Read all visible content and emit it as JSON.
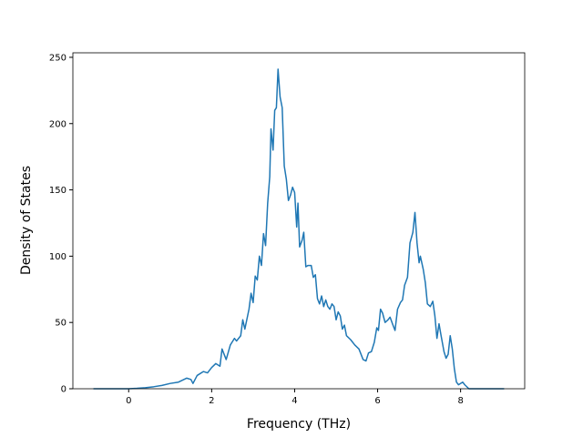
{
  "chart_data": {
    "type": "line",
    "x_label": "Frequency (THz)",
    "y_label": "Density of States",
    "series": [
      {
        "color": "#1f77b4",
        "x": [
          -0.85,
          -0.4,
          0.0,
          0.2,
          0.4,
          0.6,
          0.8,
          1.0,
          1.2,
          1.4,
          1.5,
          1.55,
          1.65,
          1.8,
          1.9,
          2.0,
          2.1,
          2.2,
          2.25,
          2.35,
          2.45,
          2.55,
          2.6,
          2.7,
          2.75,
          2.8,
          2.9,
          2.95,
          3.0,
          3.05,
          3.1,
          3.15,
          3.2,
          3.25,
          3.3,
          3.35,
          3.4,
          3.43,
          3.48,
          3.52,
          3.56,
          3.6,
          3.65,
          3.7,
          3.75,
          3.8,
          3.85,
          3.9,
          3.95,
          4.0,
          4.05,
          4.08,
          4.12,
          4.18,
          4.22,
          4.27,
          4.32,
          4.4,
          4.45,
          4.5,
          4.55,
          4.6,
          4.65,
          4.7,
          4.75,
          4.8,
          4.85,
          4.9,
          4.95,
          5.0,
          5.05,
          5.1,
          5.15,
          5.2,
          5.25,
          5.35,
          5.45,
          5.55,
          5.65,
          5.72,
          5.78,
          5.85,
          5.92,
          5.98,
          6.02,
          6.07,
          6.12,
          6.18,
          6.25,
          6.3,
          6.37,
          6.42,
          6.48,
          6.55,
          6.6,
          6.65,
          6.72,
          6.78,
          6.85,
          6.9,
          6.95,
          7.0,
          7.03,
          7.1,
          7.15,
          7.2,
          7.27,
          7.33,
          7.38,
          7.43,
          7.48,
          7.53,
          7.6,
          7.65,
          7.7,
          7.75,
          7.8,
          7.85,
          7.9,
          7.95,
          8.05,
          8.1,
          8.2,
          8.4,
          9.05
        ],
        "values": [
          0,
          0,
          0,
          0.3,
          0.8,
          1.5,
          2.5,
          4,
          5,
          8,
          7,
          4,
          10,
          13,
          12,
          16,
          19,
          17,
          30,
          22,
          33,
          38,
          36,
          40,
          52,
          45,
          60,
          72,
          65,
          85,
          82,
          100,
          93,
          117,
          108,
          140,
          160,
          196,
          180,
          210,
          212,
          241,
          220,
          212,
          168,
          158,
          142,
          146,
          152,
          148,
          122,
          140,
          107,
          112,
          118,
          92,
          93,
          93,
          84,
          86,
          68,
          64,
          70,
          62,
          67,
          62,
          60,
          64,
          62,
          52,
          58,
          55,
          45,
          48,
          40,
          37,
          33,
          30,
          22,
          21,
          27,
          28,
          35,
          46,
          44,
          60,
          57,
          50,
          52,
          54,
          48,
          44,
          60,
          65,
          67,
          78,
          84,
          110,
          118,
          133,
          110,
          95,
          100,
          90,
          80,
          64,
          62,
          66,
          55,
          38,
          49,
          40,
          28,
          23,
          26,
          40,
          30,
          15,
          5,
          3,
          5,
          3,
          0,
          0,
          0
        ]
      }
    ],
    "xlim": [
      -1.345,
      9.545
    ],
    "ylim": [
      0,
      253.4
    ],
    "xticks": [
      0,
      2,
      4,
      6,
      8
    ],
    "yticks": [
      0,
      50,
      100,
      150,
      200,
      250
    ]
  }
}
